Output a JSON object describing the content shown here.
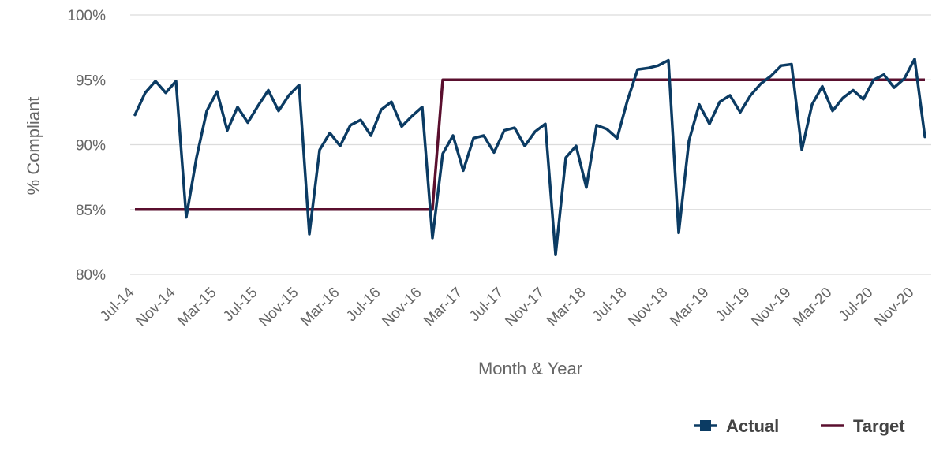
{
  "chart_data": {
    "type": "line",
    "title": "",
    "xlabel": "Month & Year",
    "ylabel": "% Compliant",
    "ylim": [
      80,
      100
    ],
    "yticks": [
      "80%",
      "85%",
      "90%",
      "95%",
      "100%"
    ],
    "ytick_values": [
      80,
      85,
      90,
      95,
      100
    ],
    "x_start_month": "Jul-14",
    "x_count": 78,
    "xtick_labels": [
      "Jul-14",
      "Nov-14",
      "Mar-15",
      "Jul-15",
      "Nov-15",
      "Mar-16",
      "Jul-16",
      "Nov-16",
      "Mar-17",
      "Jul-17",
      "Nov-17",
      "Mar-18",
      "Jul-18",
      "Nov-18",
      "Mar-19",
      "Jul-19",
      "Nov-19",
      "Mar-20",
      "Jul-20",
      "Nov-20"
    ],
    "grid": true,
    "legend_position": "bottom-right",
    "series": [
      {
        "name": "Actual",
        "color": "#0b3b63",
        "values": [
          92.3,
          94.0,
          94.9,
          94.0,
          94.9,
          84.4,
          89.0,
          92.6,
          94.1,
          91.1,
          92.9,
          91.7,
          93.0,
          94.2,
          92.6,
          93.8,
          94.6,
          83.1,
          89.6,
          90.9,
          89.9,
          91.5,
          91.9,
          90.7,
          92.7,
          93.3,
          91.4,
          92.2,
          92.9,
          82.8,
          89.3,
          90.7,
          88.0,
          90.5,
          90.7,
          89.4,
          91.1,
          91.3,
          89.9,
          91.0,
          91.6,
          81.5,
          89.0,
          89.9,
          86.7,
          91.5,
          91.2,
          90.5,
          93.4,
          95.8,
          95.9,
          96.1,
          96.5,
          83.2,
          90.3,
          93.1,
          91.6,
          93.3,
          93.8,
          92.5,
          93.8,
          94.7,
          95.3,
          96.1,
          96.2,
          89.6,
          93.1,
          94.5,
          92.6,
          93.6,
          94.2,
          93.5,
          95.0,
          95.4,
          94.4,
          95.1,
          96.6,
          90.6
        ]
      },
      {
        "name": "Target",
        "color": "#5a0f2e",
        "values": [
          85,
          85,
          85,
          85,
          85,
          85,
          85,
          85,
          85,
          85,
          85,
          85,
          85,
          85,
          85,
          85,
          85,
          85,
          85,
          85,
          85,
          85,
          85,
          85,
          85,
          85,
          85,
          85,
          85,
          85,
          95,
          95,
          95,
          95,
          95,
          95,
          95,
          95,
          95,
          95,
          95,
          95,
          95,
          95,
          95,
          95,
          95,
          95,
          95,
          95,
          95,
          95,
          95,
          95,
          95,
          95,
          95,
          95,
          95,
          95,
          95,
          95,
          95,
          95,
          95,
          95,
          95,
          95,
          95,
          95,
          95,
          95,
          95,
          95,
          95,
          95,
          95,
          95
        ]
      }
    ]
  }
}
